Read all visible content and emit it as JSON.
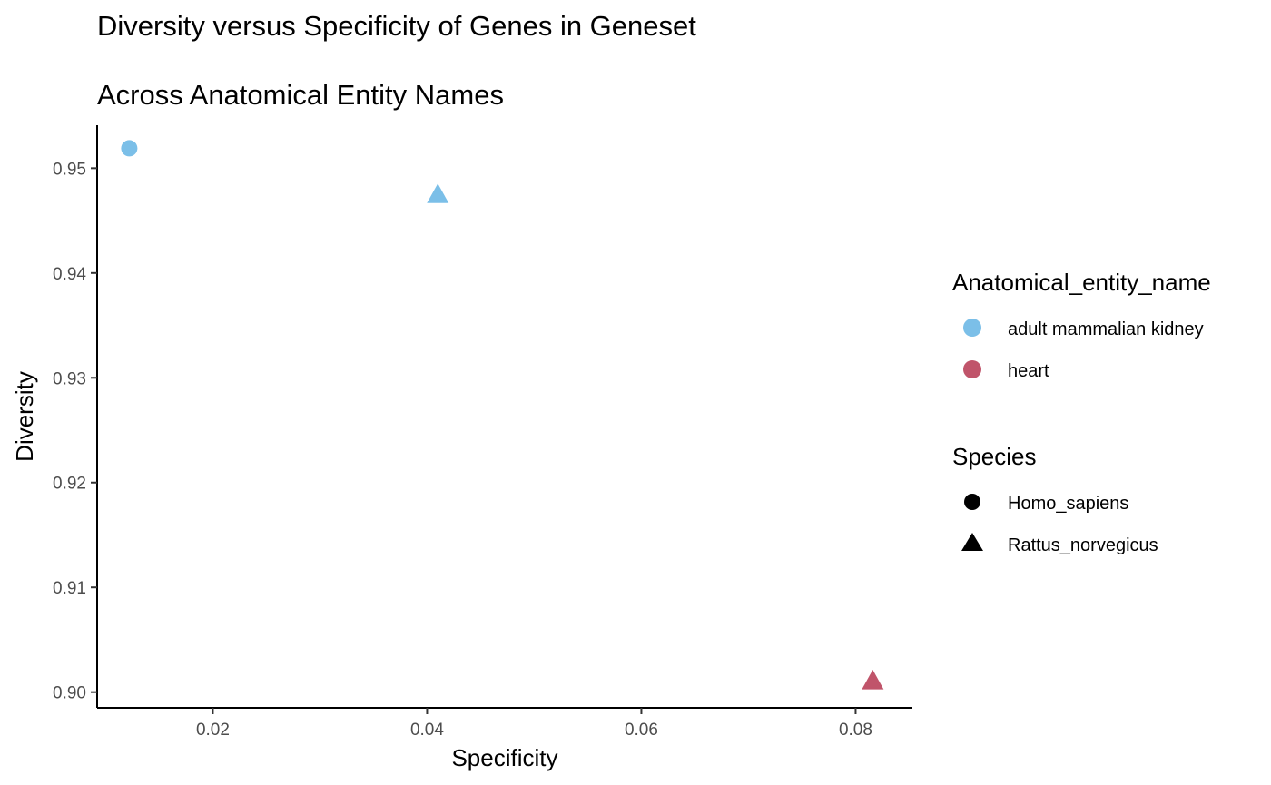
{
  "chart_data": {
    "type": "scatter",
    "title": "Diversity versus Specificity of Genes in Geneset",
    "subtitle": "Across Anatomical Entity Names",
    "xlabel": "Specificity",
    "ylabel": "Diversity",
    "xlim": [
      0.0092,
      0.0853
    ],
    "ylim": [
      0.8985,
      0.9541
    ],
    "xticks": [
      0.02,
      0.04,
      0.06,
      0.08
    ],
    "xtick_labels": [
      "0.02",
      "0.04",
      "0.06",
      "0.08"
    ],
    "yticks": [
      0.9,
      0.91,
      0.92,
      0.93,
      0.94,
      0.95
    ],
    "ytick_labels": [
      "0.90",
      "0.91",
      "0.92",
      "0.93",
      "0.94",
      "0.95"
    ],
    "grid": false,
    "legend_placement": "right",
    "points": [
      {
        "x": 0.0122,
        "y": 0.9519,
        "anatomical_entity_name": "adult mammalian kidney",
        "species": "Homo_sapiens"
      },
      {
        "x": 0.041,
        "y": 0.9475,
        "anatomical_entity_name": "adult mammalian kidney",
        "species": "Rattus_norvegicus"
      },
      {
        "x": 0.0816,
        "y": 0.9011,
        "anatomical_entity_name": "heart",
        "species": "Rattus_norvegicus"
      }
    ],
    "legends": [
      {
        "title": "Anatomical_entity_name",
        "entries": [
          {
            "label": "adult mammalian kidney",
            "color": "#7bbfe8"
          },
          {
            "label": "heart",
            "color": "#c0546a"
          }
        ]
      },
      {
        "title": "Species",
        "entries": [
          {
            "label": "Homo_sapiens",
            "shape": "circle"
          },
          {
            "label": "Rattus_norvegicus",
            "shape": "triangle"
          }
        ]
      }
    ]
  }
}
